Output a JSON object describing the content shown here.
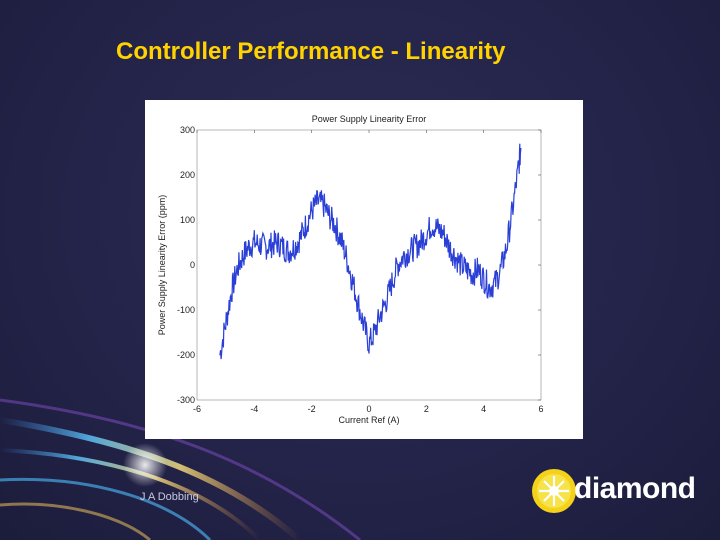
{
  "slide": {
    "title": "Controller Performance - Linearity",
    "author": "J A Dobbing",
    "logo_text": "diamond",
    "colors": {
      "background": "#24244a",
      "title": "#ffd200",
      "series": "#2a3fd6"
    }
  },
  "chart_data": {
    "type": "line",
    "title": "Power Supply Linearity Error",
    "xlabel": "Current Ref (A)",
    "ylabel": "Power Supply Linearity Error (ppm)",
    "xlim": [
      -6,
      6
    ],
    "ylim": [
      -300,
      300
    ],
    "xticks": [
      -6,
      -4,
      -2,
      0,
      2,
      4,
      6
    ],
    "yticks": [
      -300,
      -200,
      -100,
      0,
      100,
      200,
      300
    ],
    "xtick_labels": [
      "-6",
      "-4",
      "-2",
      "0",
      "2",
      "4",
      "6"
    ],
    "ytick_labels": [
      "-300",
      "-200",
      "-100",
      "0",
      "100",
      "200",
      "300"
    ],
    "grid": false,
    "series": [
      {
        "values_x": [
          -5.2,
          -5.0,
          -4.8,
          -4.6,
          -4.4,
          -4.2,
          -4.0,
          -3.8,
          -3.6,
          -3.4,
          -3.2,
          -3.0,
          -2.8,
          -2.6,
          -2.4,
          -2.2,
          -2.0,
          -1.8,
          -1.6,
          -1.4,
          -1.2,
          -1.0,
          -0.8,
          -0.6,
          -0.4,
          -0.2,
          0.0,
          0.2,
          0.4,
          0.6,
          0.8,
          1.0,
          1.2,
          1.4,
          1.6,
          1.8,
          2.0,
          2.2,
          2.4,
          2.6,
          2.8,
          3.0,
          3.2,
          3.4,
          3.6,
          3.8,
          4.0,
          4.2,
          4.4,
          4.6,
          4.8,
          5.0,
          5.2,
          5.3
        ],
        "values_y": [
          -200,
          -130,
          -60,
          -10,
          20,
          40,
          50,
          45,
          40,
          45,
          50,
          40,
          30,
          40,
          60,
          90,
          120,
          140,
          135,
          110,
          90,
          60,
          20,
          -30,
          -80,
          -130,
          -175,
          -150,
          -110,
          -80,
          -40,
          0,
          20,
          30,
          40,
          50,
          70,
          90,
          80,
          70,
          40,
          20,
          0,
          -10,
          -20,
          -10,
          -30,
          -50,
          -40,
          -10,
          40,
          120,
          210,
          260
        ]
      }
    ]
  }
}
